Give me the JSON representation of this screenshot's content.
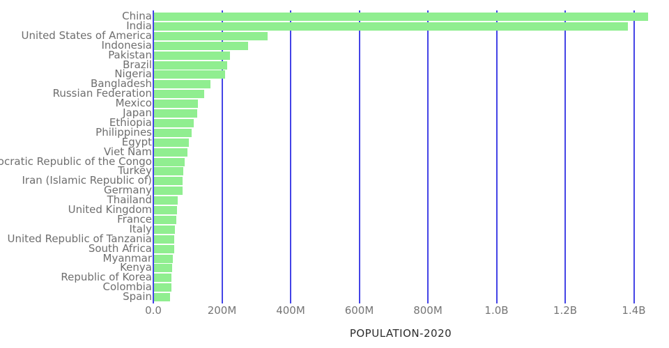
{
  "chart_data": {
    "type": "bar",
    "orientation": "horizontal",
    "title": "",
    "xlabel": "POPULATION-2020",
    "ylabel": "",
    "unit": "millions",
    "categories": [
      "China",
      "India",
      "United States of America",
      "Indonesia",
      "Pakistan",
      "Brazil",
      "Nigeria",
      "Bangladesh",
      "Russian Federation",
      "Mexico",
      "Japan",
      "Ethiopia",
      "Philippines",
      "Egypt",
      "Viet Nam",
      "Democratic Republic of the Congo",
      "Turkey",
      "Iran (Islamic Republic of)",
      "Germany",
      "Thailand",
      "United Kingdom",
      "France",
      "Italy",
      "United Republic of Tanzania",
      "South Africa",
      "Myanmar",
      "Kenya",
      "Republic of Korea",
      "Colombia",
      "Spain"
    ],
    "values": [
      1439.3,
      1380.0,
      331.0,
      273.5,
      220.9,
      212.6,
      206.1,
      164.7,
      145.9,
      128.9,
      126.5,
      115.0,
      109.6,
      102.3,
      97.3,
      89.6,
      84.3,
      84.0,
      83.8,
      69.8,
      67.9,
      65.3,
      60.5,
      59.7,
      59.3,
      54.4,
      53.8,
      51.3,
      50.9,
      46.8
    ],
    "xlim": [
      0,
      1450
    ],
    "xticks": [
      {
        "value": 0,
        "label": "0.0"
      },
      {
        "value": 200,
        "label": "200M"
      },
      {
        "value": 400,
        "label": "400M"
      },
      {
        "value": 600,
        "label": "600M"
      },
      {
        "value": 800,
        "label": "800M"
      },
      {
        "value": 1000,
        "label": "1.0B"
      },
      {
        "value": 1200,
        "label": "1.2B"
      },
      {
        "value": 1400,
        "label": "1.4B"
      }
    ],
    "grid": true,
    "legend": false,
    "colors": {
      "bar": "#90ee90",
      "gridline": "#4343e6",
      "category_label": "#6e6e6e",
      "tick_label": "#757575",
      "axis_title": "#2b2b2b"
    }
  }
}
